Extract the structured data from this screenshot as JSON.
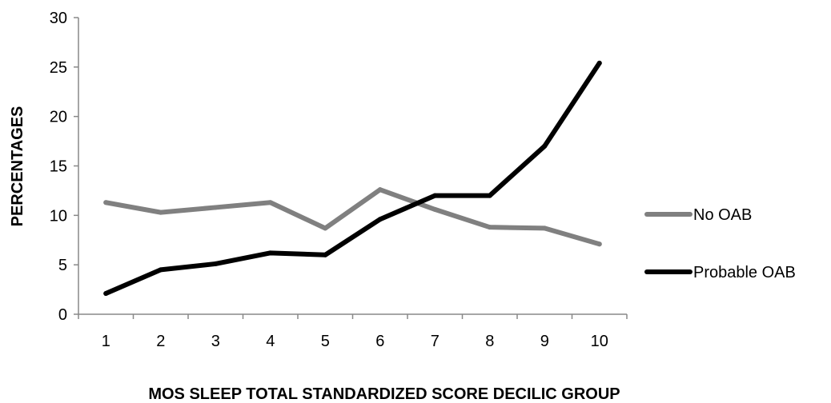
{
  "chart_data": {
    "type": "line",
    "title": "",
    "xlabel": "MOS SLEEP TOTAL STANDARDIZED SCORE DECILIC GROUP",
    "ylabel": "PERCENTAGES",
    "categories": [
      "1",
      "2",
      "3",
      "4",
      "5",
      "6",
      "7",
      "8",
      "9",
      "10"
    ],
    "y_ticks": [
      "0",
      "5",
      "10",
      "15",
      "20",
      "25",
      "30"
    ],
    "ylim": [
      0,
      30
    ],
    "grid": false,
    "legend_position": "right",
    "series": [
      {
        "name": "No OAB",
        "color": "#808080",
        "values": [
          11.3,
          10.3,
          10.8,
          11.3,
          8.7,
          12.6,
          10.6,
          8.8,
          8.7,
          7.1
        ]
      },
      {
        "name": "Probable OAB",
        "color": "#000000",
        "values": [
          2.1,
          4.5,
          5.1,
          6.2,
          6.0,
          9.6,
          12.0,
          12.0,
          17.0,
          25.4
        ]
      }
    ]
  }
}
